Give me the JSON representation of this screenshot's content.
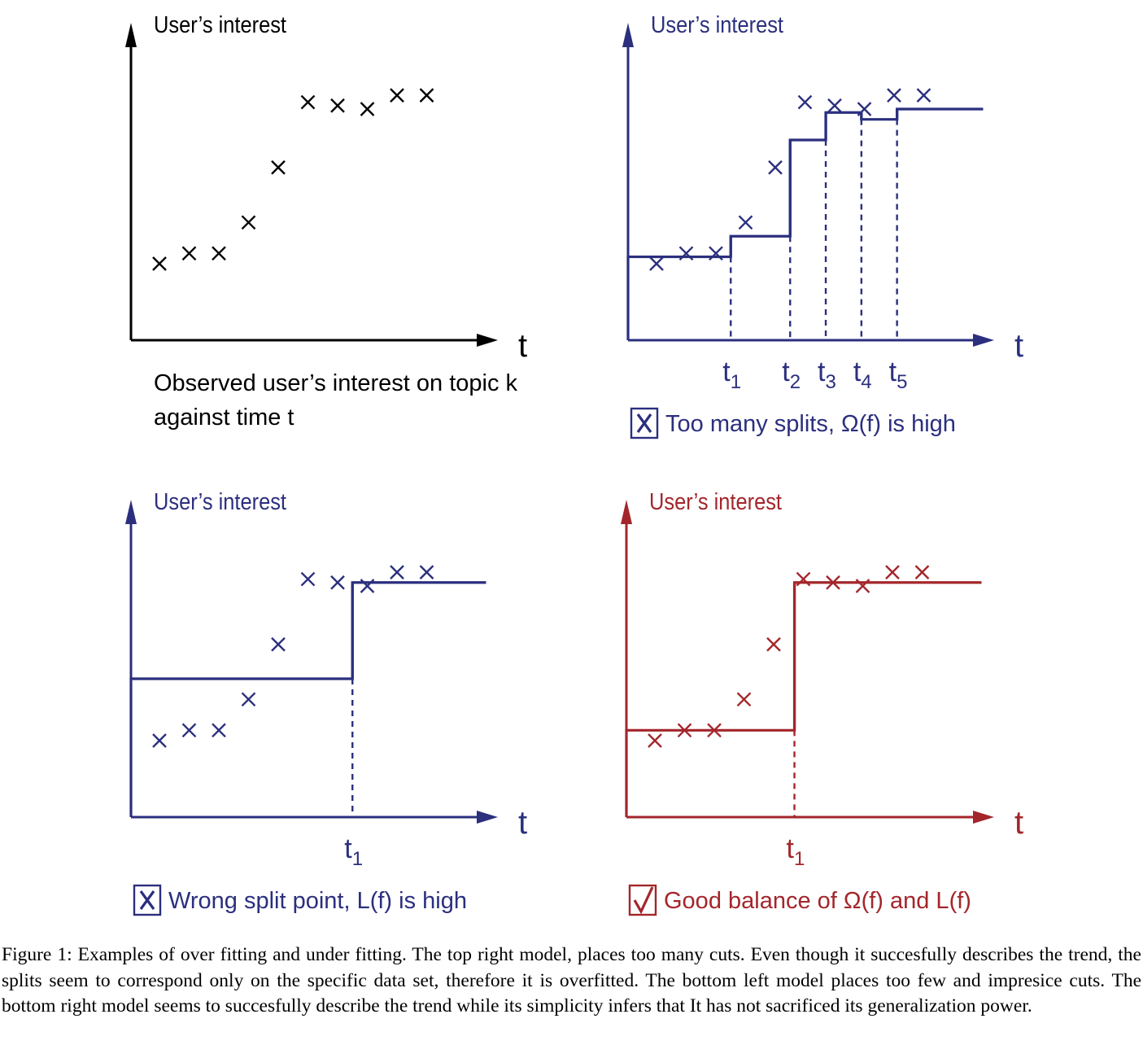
{
  "colors": {
    "black": "#000000",
    "navy": "#2b2f7e",
    "red": "#a3262b"
  },
  "panels": [
    {
      "id": "observed",
      "color": "#000000",
      "ylabel": "User’s interest",
      "xlabel": "t",
      "points": [
        [
          1,
          3.0
        ],
        [
          2,
          3.3
        ],
        [
          3,
          3.3
        ],
        [
          4,
          4.2
        ],
        [
          5,
          5.8
        ],
        [
          6,
          7.7
        ],
        [
          7,
          7.6
        ],
        [
          8,
          7.5
        ],
        [
          9,
          7.9
        ],
        [
          10,
          7.9
        ]
      ],
      "steps": [],
      "splits": [],
      "caption_lines": [
        "Observed user’s interest on topic k",
        "against time t"
      ],
      "marker": null
    },
    {
      "id": "too-many-splits",
      "color": "#2b2f7e",
      "ylabel": "User’s interest",
      "xlabel": "t",
      "points": [
        [
          1,
          3.0
        ],
        [
          2,
          3.3
        ],
        [
          3,
          3.3
        ],
        [
          4,
          4.2
        ],
        [
          5,
          5.8
        ],
        [
          6,
          7.7
        ],
        [
          7,
          7.6
        ],
        [
          8,
          7.5
        ],
        [
          9,
          7.9
        ],
        [
          10,
          7.9
        ]
      ],
      "steps": [
        [
          0,
          3.2
        ],
        [
          2.5,
          3.8
        ],
        [
          4.5,
          6.6
        ],
        [
          5.7,
          7.4
        ],
        [
          6.9,
          7.2
        ],
        [
          8.1,
          7.5
        ],
        [
          11,
          7.5
        ]
      ],
      "splits": [
        {
          "x": 2.5,
          "main": "t",
          "sub": "1"
        },
        {
          "x": 4.5,
          "main": "t",
          "sub": "2"
        },
        {
          "x": 5.7,
          "main": "t",
          "sub": "3"
        },
        {
          "x": 6.9,
          "main": "t",
          "sub": "4"
        },
        {
          "x": 8.1,
          "main": "t",
          "sub": "5"
        }
      ],
      "caption_lines": [
        "Too many splits, Ω(f) is high"
      ],
      "marker": "cross"
    },
    {
      "id": "wrong-split",
      "color": "#2b2f7e",
      "ylabel": "User’s interest",
      "xlabel": "t",
      "points": [
        [
          1,
          3.0
        ],
        [
          2,
          3.3
        ],
        [
          3,
          3.3
        ],
        [
          4,
          4.2
        ],
        [
          5,
          5.8
        ],
        [
          6,
          7.7
        ],
        [
          7,
          7.6
        ],
        [
          8,
          7.5
        ],
        [
          9,
          7.9
        ],
        [
          10,
          7.9
        ]
      ],
      "steps": [
        [
          0,
          4.8
        ],
        [
          6.5,
          7.6
        ],
        [
          11,
          7.6
        ]
      ],
      "splits": [
        {
          "x": 6.5,
          "main": "t",
          "sub": "1"
        }
      ],
      "caption_lines": [
        "Wrong split point, L(f) is high"
      ],
      "marker": "cross"
    },
    {
      "id": "good-balance",
      "color": "#a3262b",
      "ylabel": "User’s interest",
      "xlabel": "t",
      "points": [
        [
          1,
          3.0
        ],
        [
          2,
          3.3
        ],
        [
          3,
          3.3
        ],
        [
          4,
          4.2
        ],
        [
          5,
          5.8
        ],
        [
          6,
          7.7
        ],
        [
          7,
          7.6
        ],
        [
          8,
          7.5
        ],
        [
          9,
          7.9
        ],
        [
          10,
          7.9
        ]
      ],
      "steps": [
        [
          0,
          3.3
        ],
        [
          4.7,
          7.6
        ],
        [
          11,
          7.6
        ]
      ],
      "splits": [
        {
          "x": 4.7,
          "main": "t",
          "sub": "1"
        }
      ],
      "caption_lines": [
        "Good balance of Ω(f) and L(f)"
      ],
      "marker": "check"
    }
  ],
  "caption": "Figure 1: Examples of over fitting and under fitting. The top right model, places too many cuts. Even though it succesfully describes the trend, the splits seem to correspond only on the specific data set, therefore it is overfitted. The bottom left model places too few and impresice cuts. The bottom right model seems to succesfully describe the trend while its simplicity infers that It has not sacrificed its generalization power."
}
